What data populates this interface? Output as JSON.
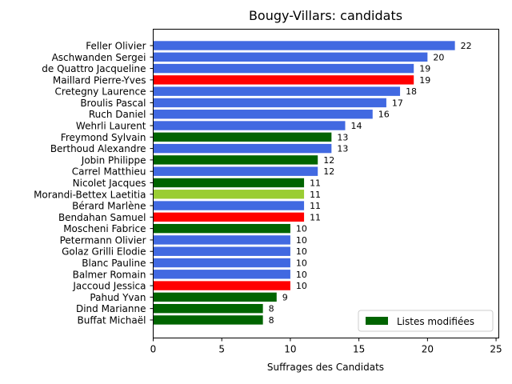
{
  "chart_data": {
    "type": "bar",
    "orientation": "horizontal",
    "title": "Bougy-Villars: candidats",
    "xlabel": "Suffrages des Candidats",
    "ylabel": "",
    "xlim": [
      0,
      25.2
    ],
    "xticks": [
      0,
      5,
      10,
      15,
      20,
      25
    ],
    "grid": false,
    "legend_position": "lower right",
    "legend": [
      {
        "label": "Listes modifiées",
        "color": "#006400"
      }
    ],
    "colors": {
      "blue": "#4169E1",
      "red": "#FF0000",
      "dark_green": "#006400",
      "yellow_green": "#9ACD32"
    },
    "categories": [
      "Feller Olivier",
      "Aschwanden Sergei",
      "de Quattro Jacqueline",
      "Maillard Pierre-Yves",
      "Cretegny Laurence",
      "Broulis Pascal",
      "Ruch Daniel",
      "Wehrli Laurent",
      "Freymond Sylvain",
      "Berthoud Alexandre",
      "Jobin Philippe",
      "Carrel Matthieu",
      "Nicolet Jacques",
      "Morandi-Bettex Laetitia",
      "Bérard Marlène",
      "Bendahan Samuel",
      "Moscheni Fabrice",
      "Petermann Olivier",
      "Golaz Grilli Elodie",
      "Blanc Pauline",
      "Balmer Romain",
      "Jaccoud Jessica",
      "Pahud Yvan",
      "Dind Marianne",
      "Buffat Michaël"
    ],
    "values": [
      22,
      20,
      19,
      19,
      18,
      17,
      16,
      14,
      13,
      13,
      12,
      12,
      11,
      11,
      11,
      11,
      10,
      10,
      10,
      10,
      10,
      10,
      9,
      8,
      8
    ],
    "bar_colors": [
      "#4169E1",
      "#4169E1",
      "#4169E1",
      "#FF0000",
      "#4169E1",
      "#4169E1",
      "#4169E1",
      "#4169E1",
      "#006400",
      "#4169E1",
      "#006400",
      "#4169E1",
      "#006400",
      "#9ACD32",
      "#4169E1",
      "#FF0000",
      "#006400",
      "#4169E1",
      "#4169E1",
      "#4169E1",
      "#4169E1",
      "#FF0000",
      "#006400",
      "#006400",
      "#006400"
    ]
  }
}
